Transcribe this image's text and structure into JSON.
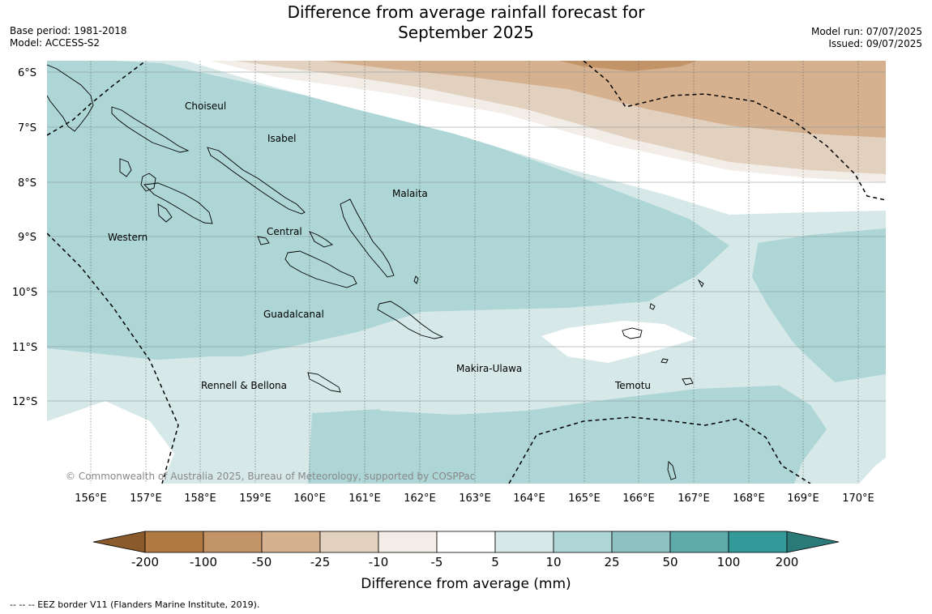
{
  "title_line1": "Difference from average rainfall forecast for",
  "title_line2": "September 2025",
  "base_period": "Base period: 1981-2018",
  "model": "Model: ACCESS-S2",
  "model_run": "Model run: 07/07/2025",
  "issued": "Issued: 09/07/2025",
  "copyright": "© Commonwealth of Australia 2025, Bureau of Meteorology, supported by COSPPac",
  "footnote": "--  --  -- EEZ border V11 (Flanders Marine Institute, 2019).",
  "lat_labels": [
    "6°S",
    "7°S",
    "8°S",
    "9°S",
    "10°S",
    "11°S",
    "12°S"
  ],
  "lon_labels": [
    "156°E",
    "157°E",
    "158°E",
    "159°E",
    "160°E",
    "161°E",
    "162°E",
    "163°E",
    "164°E",
    "165°E",
    "166°E",
    "167°E",
    "168°E",
    "169°E",
    "170°E"
  ],
  "regions": {
    "choiseul": "Choiseul",
    "isabel": "Isabel",
    "malaita": "Malaita",
    "western": "Western",
    "central": "Central",
    "guadalcanal": "Guadalcanal",
    "makira": "Makira-Ulawa",
    "rennell": "Rennell & Bellona",
    "temotu": "Temotu"
  },
  "colorbar": {
    "title": "Difference from average (mm)",
    "labels": [
      "-200",
      "-100",
      "-50",
      "-25",
      "-10",
      "-5",
      "5",
      "10",
      "25",
      "50",
      "100",
      "200"
    ],
    "colors": [
      "#8b5a2b",
      "#b07a42",
      "#c39468",
      "#d5b190",
      "#e3d1c0",
      "#f2ede7",
      "#ffffff",
      "#d6e9e8",
      "#aed6d6",
      "#8ec2c2",
      "#5fabab",
      "#339999",
      "#2a7a7a"
    ]
  }
}
